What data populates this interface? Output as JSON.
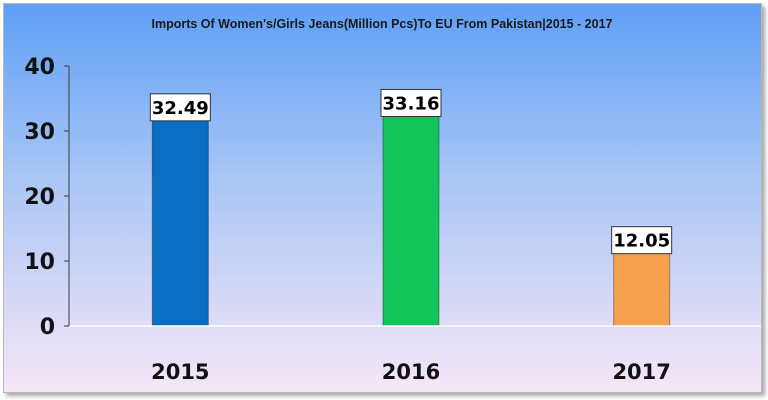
{
  "chart_data": {
    "type": "bar",
    "title": "Imports Of Women's/Girls Jeans(Million Pcs)To EU From Pakistan|2015 - 2017",
    "xlabel": "",
    "ylabel": "",
    "categories": [
      "2015",
      "2016",
      "2017"
    ],
    "values": [
      32.49,
      33.16,
      12.05
    ],
    "data_labels": [
      "32.49",
      "33.16",
      "12.05"
    ],
    "bar_colors": [
      "#0a6fc2",
      "#12c45a",
      "#f6a04d"
    ],
    "ylim": [
      0,
      40
    ],
    "yticks": [
      "0",
      "10",
      "20",
      "30",
      "40"
    ],
    "grid": false,
    "legend": "none",
    "background_colors": [
      "#5f9ff5",
      "#f7e6f7"
    ]
  }
}
